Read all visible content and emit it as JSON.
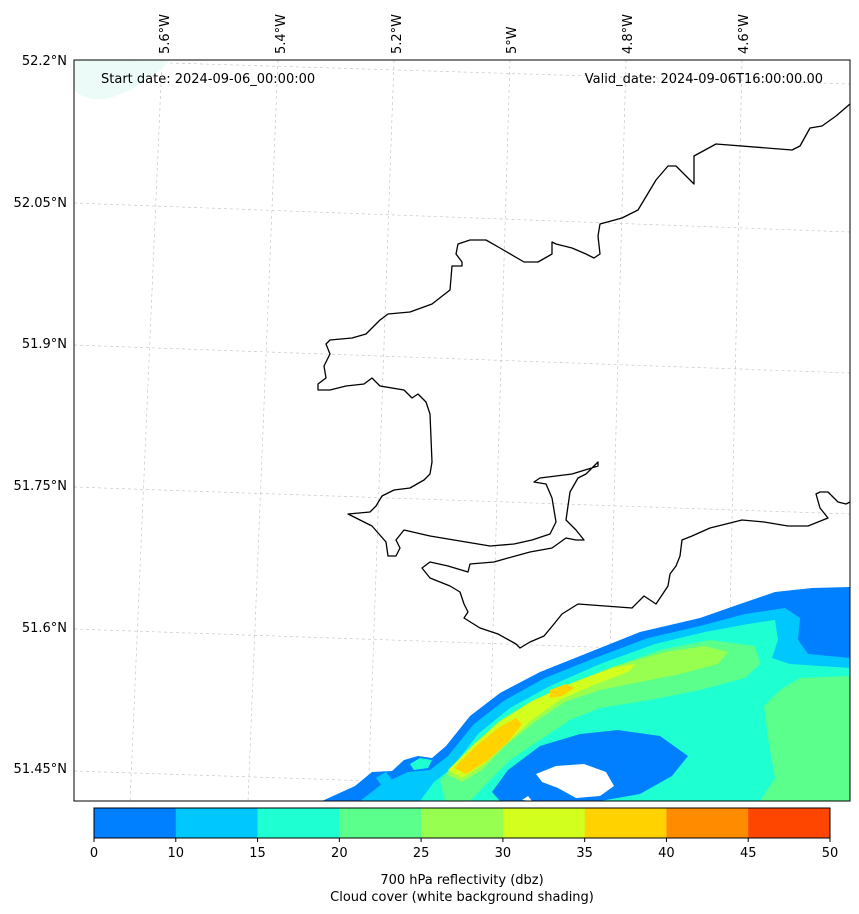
{
  "header": {
    "start_date": "Start date: 2024-09-06_00:00:00",
    "valid_date": "Valid_date: 2024-09-06T16:00:00.00"
  },
  "latitude_labels": [
    "52.2°N",
    "52.05°N",
    "51.9°N",
    "51.75°N",
    "51.6°N",
    "51.45°N"
  ],
  "longitude_labels": [
    "5.6°W",
    "5.4°W",
    "5.2°W",
    "5°W",
    "4.8°W",
    "4.6°W"
  ],
  "colorbar": {
    "ticks": [
      "0",
      "10",
      "15",
      "20",
      "25",
      "30",
      "35",
      "40",
      "45",
      "50"
    ],
    "colors": [
      "#0080ff",
      "#00c8ff",
      "#1effd2",
      "#5aff8c",
      "#96ff50",
      "#d2ff1e",
      "#ffd200",
      "#ff8c00",
      "#ff4600"
    ],
    "caption_line1": "700 hPa reflectivity (dbz)",
    "caption_line2": "Cloud cover (white background shading)"
  },
  "reflectivity_colors": {
    "dbz_0_10": "#0080ff",
    "dbz_10_15": "#00c8ff",
    "dbz_15_20": "#1effd2",
    "dbz_20_25": "#5aff8c",
    "dbz_25_30": "#96ff50",
    "dbz_30_35": "#d2ff1e",
    "dbz_35_40": "#ffd200"
  }
}
